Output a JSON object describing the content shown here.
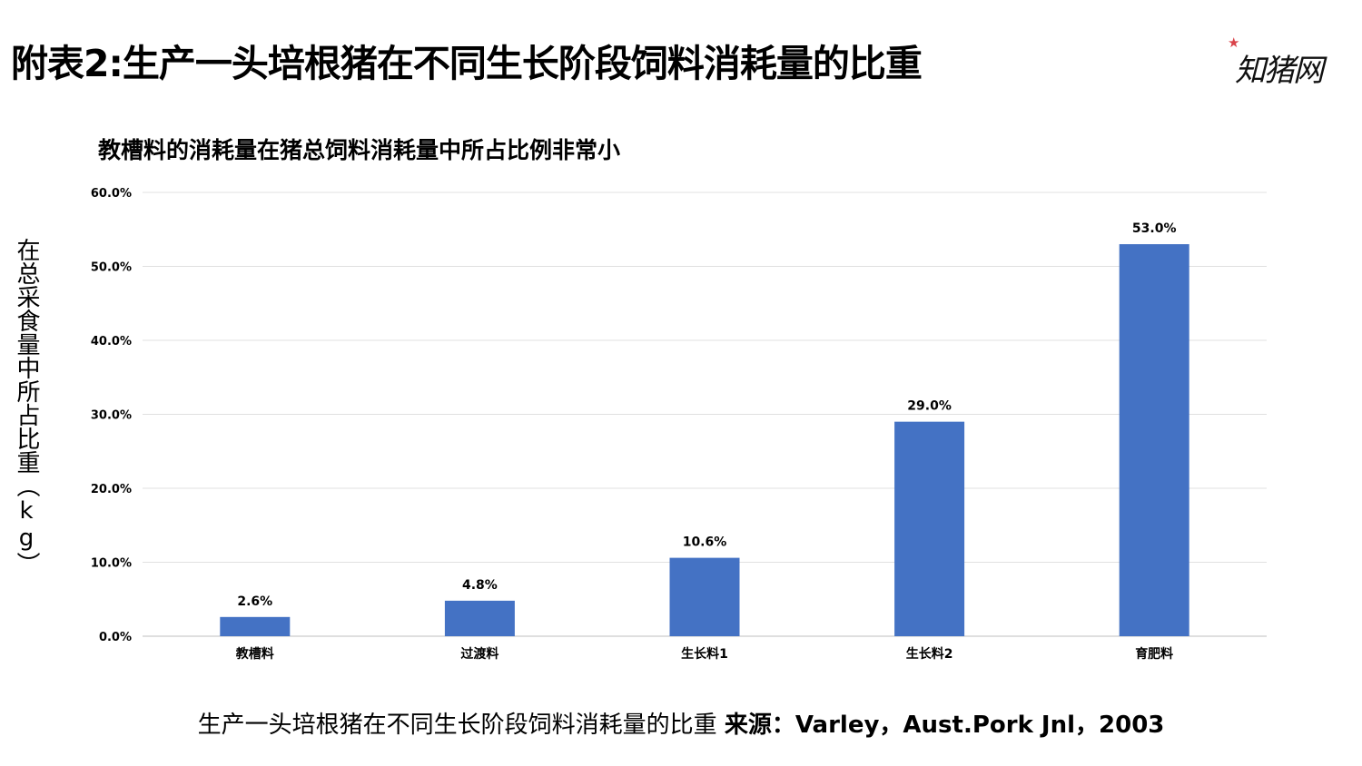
{
  "header": {
    "title": "附表2:生产一头培根猪在不同生长阶段饲料消耗量的比重",
    "logo_text": "知猪网"
  },
  "caption": {
    "text": "生产一头培根猪在不同生长阶段饲料消耗量的比重 ",
    "source": "来源：Varley，Aust.Pork Jnl，2003"
  },
  "chart_data": {
    "type": "bar",
    "title": "教槽料的消耗量在猪总饲料消耗量中所占比例非常小",
    "xlabel": "",
    "ylabel": "在总采食量中所占比重（kg）",
    "categories": [
      "教槽料",
      "过渡料",
      "生长料1",
      "生长料2",
      "育肥料"
    ],
    "values": [
      2.6,
      4.8,
      10.6,
      29.0,
      53.0
    ],
    "data_labels": [
      "2.6%",
      "4.8%",
      "10.6%",
      "29.0%",
      "53.0%"
    ],
    "y_ticks": [
      "0.0%",
      "10.0%",
      "20.0%",
      "30.0%",
      "40.0%",
      "50.0%",
      "60.0%"
    ],
    "ylim": [
      0,
      60
    ],
    "grid": true,
    "legend": "none",
    "bar_color": "#4472C4"
  }
}
